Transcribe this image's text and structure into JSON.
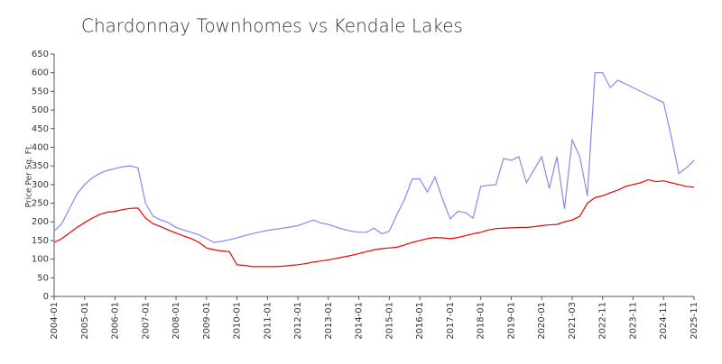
{
  "chart_data": {
    "type": "line",
    "title": "Chardonnay Townhomes vs Kendale Lakes",
    "y_label": "Price Per Sq. Ft.",
    "categories": [
      "2004-01",
      null,
      null,
      null,
      "2005-01",
      null,
      null,
      null,
      "2006-01",
      null,
      null,
      null,
      "2007-01",
      null,
      null,
      null,
      "2008-01",
      null,
      null,
      null,
      "2009-01",
      null,
      null,
      null,
      "2010-01",
      null,
      null,
      null,
      "2011-01",
      null,
      null,
      null,
      "2012-01",
      null,
      null,
      null,
      "2013-01",
      null,
      null,
      null,
      "2014-01",
      null,
      null,
      null,
      "2015-01",
      null,
      null,
      null,
      "2016-01",
      null,
      null,
      null,
      "2017-01",
      null,
      null,
      null,
      "2018-01",
      null,
      null,
      null,
      "2019-01",
      null,
      null,
      null,
      "2020-01",
      null,
      null,
      null,
      "2021-03",
      null,
      null,
      null,
      "2022-11",
      null,
      null,
      null,
      "2023-11",
      null,
      null,
      null,
      "2024-11",
      null,
      null,
      null,
      "2025-11"
    ],
    "series": [
      {
        "color": "#8888ee",
        "values": [
          175,
          195,
          235,
          275,
          300,
          318,
          330,
          338,
          343,
          348,
          350,
          345,
          250,
          215,
          205,
          198,
          185,
          178,
          172,
          165,
          155,
          145,
          148,
          152,
          157,
          163,
          168,
          173,
          177,
          180,
          183,
          186,
          190,
          197,
          205,
          197,
          193,
          186,
          180,
          175,
          172,
          172,
          183,
          168,
          175,
          220,
          260,
          315,
          315,
          280,
          320,
          260,
          208,
          228,
          225,
          210,
          295,
          298,
          300,
          370,
          365,
          375,
          305,
          340,
          375,
          290,
          375,
          235,
          420,
          375,
          270,
          600,
          600,
          560,
          580,
          570,
          560,
          550,
          540,
          530,
          520,
          430,
          330,
          345,
          365
        ]
      },
      {
        "color": "#ee0000",
        "values": [
          145,
          155,
          170,
          185,
          198,
          210,
          220,
          226,
          228,
          233,
          236,
          237,
          210,
          195,
          187,
          178,
          170,
          162,
          155,
          145,
          130,
          125,
          122,
          120,
          85,
          83,
          80,
          80,
          80,
          80,
          81,
          83,
          85,
          88,
          92,
          95,
          98,
          102,
          106,
          110,
          115,
          120,
          125,
          128,
          130,
          132,
          138,
          145,
          150,
          155,
          158,
          157,
          155,
          158,
          163,
          168,
          172,
          178,
          182,
          183,
          184,
          185,
          185,
          187,
          190,
          192,
          193,
          200,
          205,
          215,
          250,
          265,
          270,
          278,
          285,
          295,
          300,
          305,
          313,
          308,
          310,
          305,
          300,
          295,
          293
        ]
      }
    ],
    "ylim": [
      0,
      650
    ],
    "yticks": [
      0,
      50,
      100,
      150,
      200,
      250,
      300,
      350,
      400,
      450,
      500,
      550,
      600,
      650
    ]
  }
}
